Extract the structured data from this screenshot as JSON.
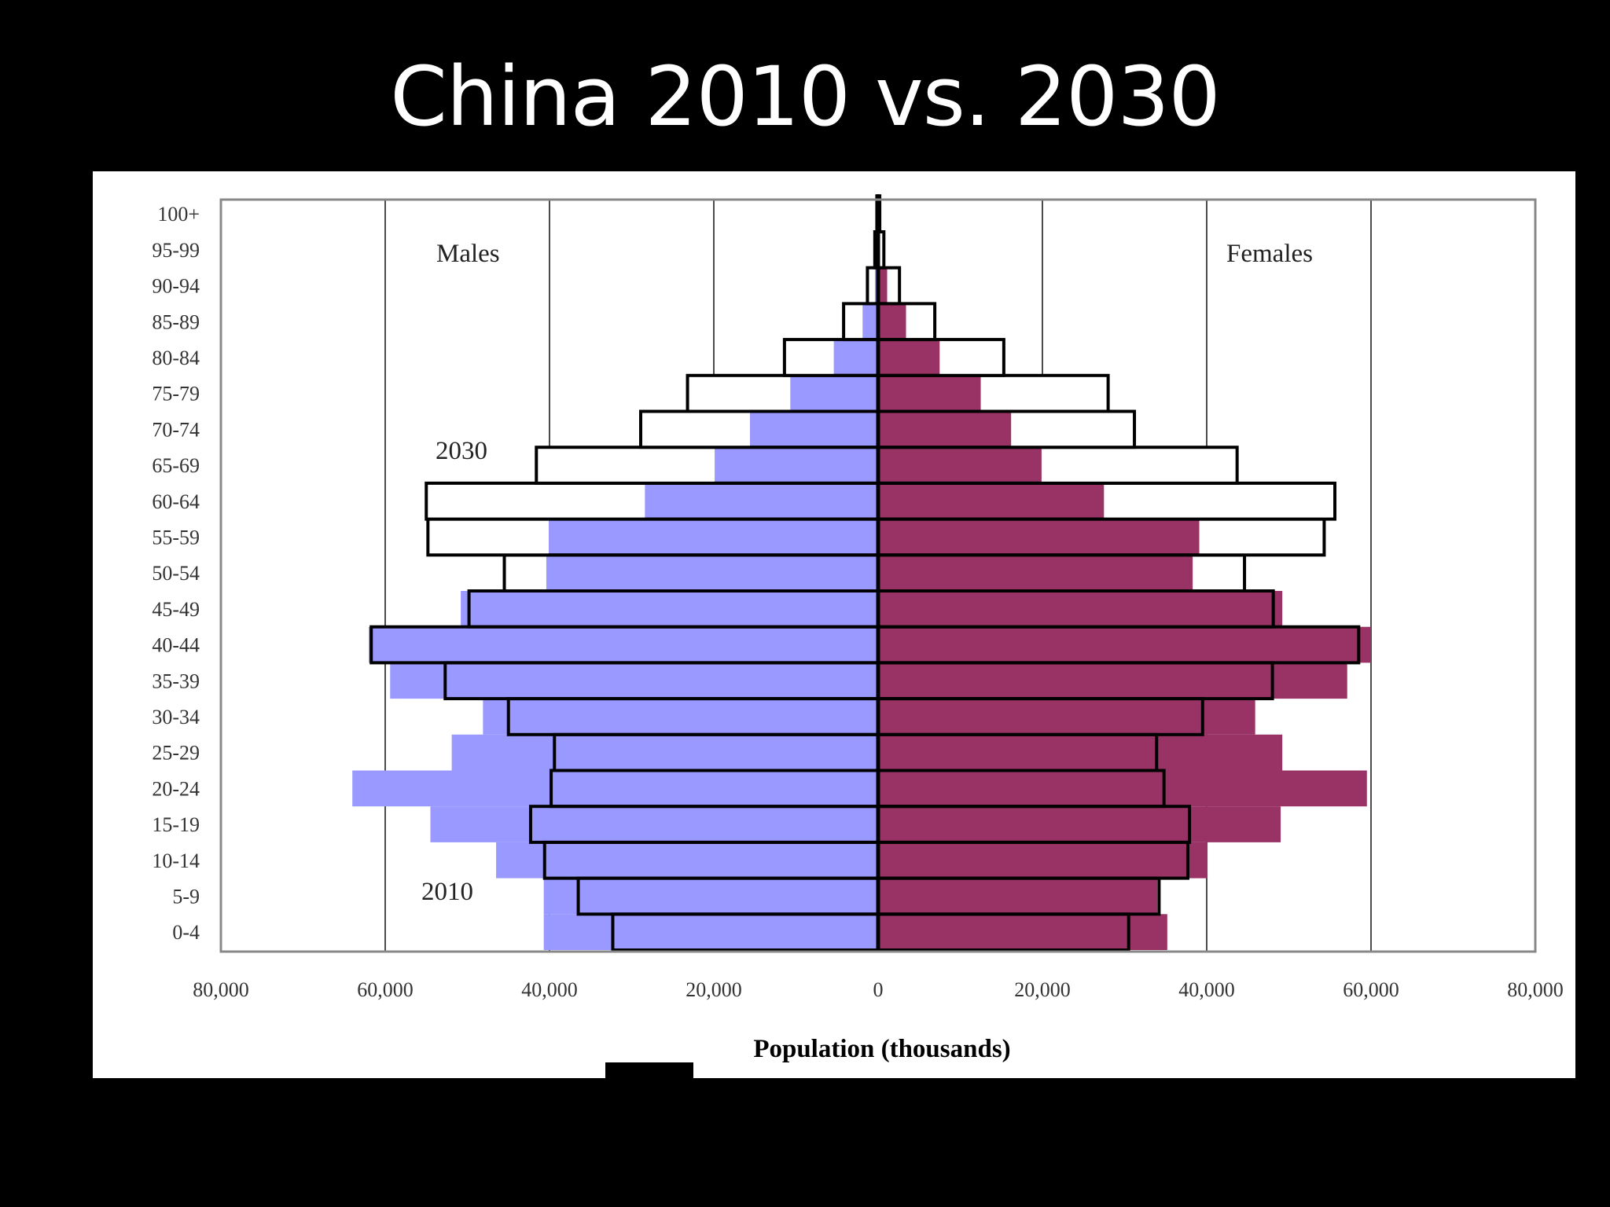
{
  "slide": {
    "title": "China 2010 vs. 2030"
  },
  "chart_data": {
    "type": "bar",
    "subtype": "population-pyramid",
    "xlabel": "Population (thousands)",
    "xlim": [
      -80000,
      80000
    ],
    "x_ticks": [
      -80000,
      -60000,
      -40000,
      -20000,
      0,
      20000,
      40000,
      60000,
      80000
    ],
    "x_tick_labels": [
      "80,000",
      "60,000",
      "40,000",
      "20,000",
      "0",
      "20,000",
      "40,000",
      "60,000",
      "80,000"
    ],
    "grid": "vertical",
    "categories": [
      "0-4",
      "5-9",
      "10-14",
      "15-19",
      "20-24",
      "25-29",
      "30-34",
      "35-39",
      "40-44",
      "45-49",
      "50-54",
      "55-59",
      "60-64",
      "65-69",
      "70-74",
      "75-79",
      "80-84",
      "85-89",
      "90-94",
      "95-99",
      "100+"
    ],
    "labels": {
      "males": "Males",
      "females": "Females",
      "year_2030": "2030",
      "year_2010": "2010"
    },
    "colors": {
      "male_2010": "#9999ff",
      "female_2010": "#993366",
      "outline_2030": "#000000"
    },
    "series": [
      {
        "name": "2010",
        "side": "Males",
        "values": [
          40700,
          40700,
          46500,
          54500,
          64000,
          51900,
          48100,
          59400,
          62000,
          50800,
          40400,
          40100,
          28400,
          19900,
          15600,
          10700,
          5400,
          1900,
          400,
          60,
          10
        ]
      },
      {
        "name": "2010",
        "side": "Females",
        "values": [
          35200,
          34000,
          40100,
          49000,
          59500,
          49200,
          45900,
          57100,
          60000,
          49200,
          38300,
          39100,
          27500,
          19900,
          16200,
          12500,
          7500,
          3400,
          1100,
          200,
          30
        ]
      },
      {
        "name": "2030",
        "side": "Males",
        "values": [
          32300,
          36500,
          40600,
          42300,
          39800,
          39400,
          45000,
          52700,
          61700,
          49800,
          45500,
          54800,
          55000,
          41600,
          28900,
          23200,
          11400,
          4200,
          1300,
          400,
          150
        ]
      },
      {
        "name": "2030",
        "side": "Females",
        "values": [
          30500,
          34200,
          37700,
          37900,
          34800,
          33900,
          39500,
          48000,
          58500,
          48100,
          44600,
          54300,
          55600,
          43700,
          31200,
          28000,
          15300,
          6900,
          2600,
          700,
          200
        ]
      }
    ]
  }
}
